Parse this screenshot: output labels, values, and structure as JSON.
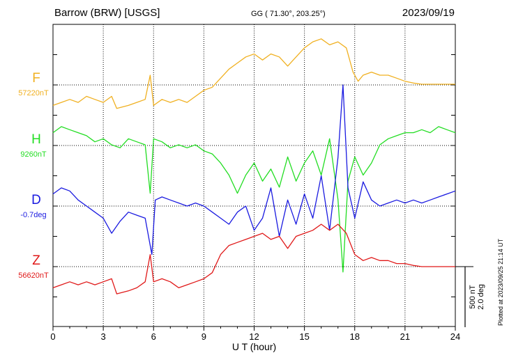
{
  "header": {
    "station": "Barrow (BRW)  [USGS]",
    "coords": "GG ( 71.30°, 203.25°)",
    "date": "2023/09/19"
  },
  "footer": {
    "plotted": "Plotted at 2023/09/25 21:14 UT"
  },
  "chart_data": {
    "type": "line",
    "xlabel": "U T (hour)",
    "xlim": [
      0,
      24
    ],
    "xticks": [
      0,
      3,
      6,
      9,
      12,
      15,
      18,
      21,
      24
    ],
    "scale": {
      "nt_label": "500 nT",
      "deg_label": "2.0 deg",
      "nt_per_division": 500
    },
    "series": [
      {
        "name": "F",
        "baseline_label": "57220nT",
        "color": "#f0b020",
        "points": [
          [
            0,
            -0.35
          ],
          [
            0.5,
            -0.3
          ],
          [
            1,
            -0.25
          ],
          [
            1.5,
            -0.3
          ],
          [
            2,
            -0.2
          ],
          [
            2.5,
            -0.25
          ],
          [
            3,
            -0.3
          ],
          [
            3.5,
            -0.2
          ],
          [
            3.8,
            -0.4
          ],
          [
            4.5,
            -0.35
          ],
          [
            5,
            -0.3
          ],
          [
            5.5,
            -0.25
          ],
          [
            5.8,
            0.15
          ],
          [
            6,
            -0.35
          ],
          [
            6.5,
            -0.25
          ],
          [
            7,
            -0.3
          ],
          [
            7.5,
            -0.25
          ],
          [
            8,
            -0.3
          ],
          [
            8.5,
            -0.2
          ],
          [
            9,
            -0.1
          ],
          [
            9.5,
            -0.05
          ],
          [
            10,
            0.1
          ],
          [
            10.5,
            0.25
          ],
          [
            11,
            0.35
          ],
          [
            11.5,
            0.45
          ],
          [
            12,
            0.5
          ],
          [
            12.5,
            0.4
          ],
          [
            13,
            0.5
          ],
          [
            13.5,
            0.45
          ],
          [
            14,
            0.3
          ],
          [
            14.5,
            0.45
          ],
          [
            15,
            0.6
          ],
          [
            15.5,
            0.7
          ],
          [
            16,
            0.75
          ],
          [
            16.5,
            0.65
          ],
          [
            17,
            0.7
          ],
          [
            17.5,
            0.6
          ],
          [
            17.9,
            0.2
          ],
          [
            18.2,
            0.05
          ],
          [
            18.5,
            0.15
          ],
          [
            19,
            0.2
          ],
          [
            19.5,
            0.15
          ],
          [
            20,
            0.15
          ],
          [
            20.5,
            0.1
          ],
          [
            21,
            0.05
          ],
          [
            21.5,
            0.02
          ],
          [
            22,
            0.0
          ],
          [
            23,
            0.0
          ],
          [
            24,
            0.0
          ]
        ]
      },
      {
        "name": "H",
        "baseline_label": "9260nT",
        "color": "#22dd22",
        "points": [
          [
            0,
            0.2
          ],
          [
            0.5,
            0.3
          ],
          [
            1,
            0.25
          ],
          [
            1.5,
            0.2
          ],
          [
            2,
            0.15
          ],
          [
            2.5,
            0.05
          ],
          [
            3,
            0.1
          ],
          [
            3.5,
            0.0
          ],
          [
            4,
            -0.05
          ],
          [
            4.5,
            0.1
          ],
          [
            5,
            0.05
          ],
          [
            5.5,
            0.0
          ],
          [
            5.8,
            -0.8
          ],
          [
            6,
            0.1
          ],
          [
            6.5,
            0.05
          ],
          [
            7,
            -0.05
          ],
          [
            7.5,
            0.0
          ],
          [
            8,
            -0.05
          ],
          [
            8.5,
            0.0
          ],
          [
            9,
            -0.1
          ],
          [
            9.5,
            -0.15
          ],
          [
            10,
            -0.3
          ],
          [
            10.5,
            -0.5
          ],
          [
            11,
            -0.8
          ],
          [
            11.5,
            -0.5
          ],
          [
            12,
            -0.3
          ],
          [
            12.5,
            -0.6
          ],
          [
            13,
            -0.4
          ],
          [
            13.5,
            -0.7
          ],
          [
            14,
            -0.2
          ],
          [
            14.5,
            -0.6
          ],
          [
            15,
            -0.3
          ],
          [
            15.5,
            -0.1
          ],
          [
            16,
            -0.5
          ],
          [
            16.5,
            0.1
          ],
          [
            17,
            -0.9
          ],
          [
            17.3,
            -2.1
          ],
          [
            17.6,
            -0.6
          ],
          [
            18,
            -0.2
          ],
          [
            18.5,
            -0.5
          ],
          [
            19,
            -0.3
          ],
          [
            19.5,
            0.0
          ],
          [
            20,
            0.1
          ],
          [
            20.5,
            0.15
          ],
          [
            21,
            0.2
          ],
          [
            21.5,
            0.2
          ],
          [
            22,
            0.25
          ],
          [
            22.5,
            0.2
          ],
          [
            23,
            0.3
          ],
          [
            23.5,
            0.25
          ],
          [
            24,
            0.2
          ]
        ]
      },
      {
        "name": "D",
        "baseline_label": "-0.7deg",
        "color": "#1a1ae0",
        "points": [
          [
            0,
            0.2
          ],
          [
            0.5,
            0.3
          ],
          [
            1,
            0.25
          ],
          [
            1.5,
            0.1
          ],
          [
            2,
            0.0
          ],
          [
            2.5,
            -0.1
          ],
          [
            3,
            -0.2
          ],
          [
            3.5,
            -0.45
          ],
          [
            4,
            -0.25
          ],
          [
            4.5,
            -0.1
          ],
          [
            5,
            -0.15
          ],
          [
            5.5,
            -0.2
          ],
          [
            5.9,
            -0.8
          ],
          [
            6.1,
            0.1
          ],
          [
            6.5,
            0.15
          ],
          [
            7,
            0.1
          ],
          [
            7.5,
            0.05
          ],
          [
            8,
            0.0
          ],
          [
            8.5,
            0.05
          ],
          [
            9,
            0.0
          ],
          [
            9.5,
            -0.1
          ],
          [
            10,
            -0.2
          ],
          [
            10.5,
            -0.3
          ],
          [
            11,
            -0.1
          ],
          [
            11.5,
            0.0
          ],
          [
            12,
            -0.4
          ],
          [
            12.5,
            -0.2
          ],
          [
            13,
            0.3
          ],
          [
            13.5,
            -0.5
          ],
          [
            14,
            0.1
          ],
          [
            14.5,
            -0.3
          ],
          [
            15,
            0.2
          ],
          [
            15.5,
            -0.2
          ],
          [
            16,
            0.5
          ],
          [
            16.5,
            -0.4
          ],
          [
            17,
            0.8
          ],
          [
            17.3,
            2.0
          ],
          [
            17.6,
            0.3
          ],
          [
            18,
            -0.2
          ],
          [
            18.5,
            0.4
          ],
          [
            19,
            0.1
          ],
          [
            19.5,
            0.0
          ],
          [
            20,
            0.05
          ],
          [
            20.5,
            0.1
          ],
          [
            21,
            0.05
          ],
          [
            21.5,
            0.1
          ],
          [
            22,
            0.05
          ],
          [
            22.5,
            0.1
          ],
          [
            23,
            0.15
          ],
          [
            23.5,
            0.2
          ],
          [
            24,
            0.25
          ]
        ]
      },
      {
        "name": "Z",
        "baseline_label": "56620nT",
        "color": "#e01818",
        "points": [
          [
            0,
            -0.35
          ],
          [
            0.5,
            -0.3
          ],
          [
            1,
            -0.25
          ],
          [
            1.5,
            -0.3
          ],
          [
            2,
            -0.25
          ],
          [
            2.5,
            -0.3
          ],
          [
            3,
            -0.25
          ],
          [
            3.5,
            -0.2
          ],
          [
            3.8,
            -0.45
          ],
          [
            4.5,
            -0.4
          ],
          [
            5,
            -0.35
          ],
          [
            5.5,
            -0.25
          ],
          [
            5.8,
            0.2
          ],
          [
            6,
            -0.25
          ],
          [
            6.5,
            -0.2
          ],
          [
            7,
            -0.25
          ],
          [
            7.5,
            -0.35
          ],
          [
            8,
            -0.3
          ],
          [
            8.5,
            -0.25
          ],
          [
            9,
            -0.2
          ],
          [
            9.5,
            -0.1
          ],
          [
            10,
            0.2
          ],
          [
            10.5,
            0.35
          ],
          [
            11,
            0.4
          ],
          [
            11.5,
            0.45
          ],
          [
            12,
            0.5
          ],
          [
            12.5,
            0.55
          ],
          [
            13,
            0.45
          ],
          [
            13.5,
            0.5
          ],
          [
            14,
            0.3
          ],
          [
            14.5,
            0.5
          ],
          [
            15,
            0.55
          ],
          [
            15.5,
            0.6
          ],
          [
            16,
            0.7
          ],
          [
            16.5,
            0.6
          ],
          [
            17,
            0.7
          ],
          [
            17.5,
            0.55
          ],
          [
            18,
            0.2
          ],
          [
            18.5,
            0.1
          ],
          [
            19,
            0.15
          ],
          [
            19.5,
            0.1
          ],
          [
            20,
            0.1
          ],
          [
            20.5,
            0.05
          ],
          [
            21,
            0.05
          ],
          [
            21.5,
            0.02
          ],
          [
            22,
            0.0
          ],
          [
            23,
            0.0
          ],
          [
            24,
            0.0
          ]
        ]
      }
    ]
  }
}
